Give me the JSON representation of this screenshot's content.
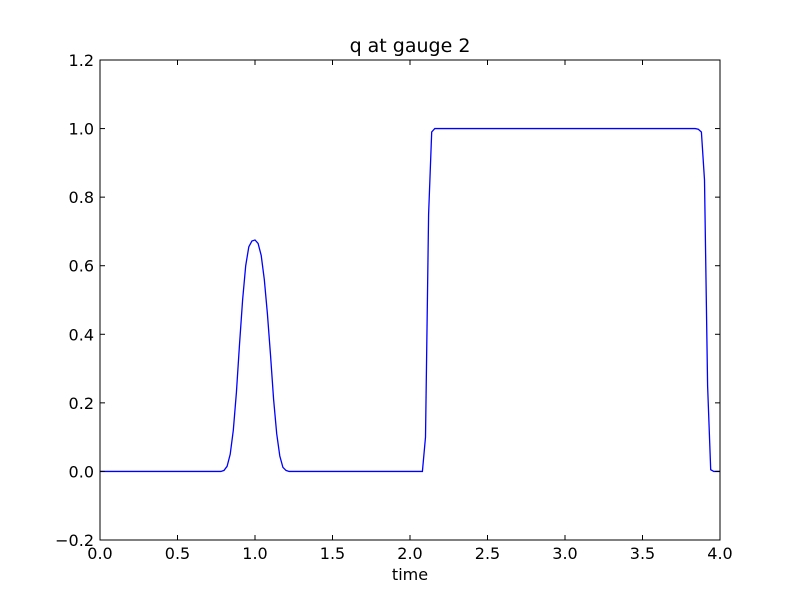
{
  "chart_data": {
    "type": "line",
    "title": "q at gauge 2",
    "xlabel": "time",
    "ylabel": "",
    "xlim": [
      0.0,
      4.0
    ],
    "ylim": [
      -0.2,
      1.2
    ],
    "xticks": [
      "0.0",
      "0.5",
      "1.0",
      "1.5",
      "2.0",
      "2.5",
      "3.0",
      "3.5",
      "4.0"
    ],
    "yticks": [
      "−0.2",
      "0.0",
      "0.2",
      "0.4",
      "0.6",
      "0.8",
      "1.0",
      "1.2"
    ],
    "grid": false,
    "legend": "none",
    "line_color": "#0000ff",
    "series": [
      {
        "x": [
          0.0,
          0.78,
          0.8,
          0.82,
          0.84,
          0.86,
          0.88,
          0.9,
          0.92,
          0.94,
          0.96,
          0.98,
          1.0,
          1.02,
          1.04,
          1.06,
          1.08,
          1.1,
          1.12,
          1.14,
          1.16,
          1.18,
          1.2,
          1.22,
          1.24,
          1.3,
          2.05,
          2.08,
          2.1,
          2.12,
          2.14,
          2.16,
          2.2,
          3.8,
          3.84,
          3.86,
          3.88,
          3.9,
          3.92,
          3.94,
          3.96,
          4.0
        ],
        "y": [
          0.0,
          0.0,
          0.003,
          0.015,
          0.05,
          0.12,
          0.23,
          0.37,
          0.5,
          0.6,
          0.655,
          0.672,
          0.675,
          0.665,
          0.63,
          0.56,
          0.46,
          0.34,
          0.21,
          0.11,
          0.045,
          0.012,
          0.003,
          0.0,
          0.0,
          0.0,
          0.0,
          0.0,
          0.1,
          0.75,
          0.99,
          1.0,
          1.0,
          1.0,
          1.0,
          0.998,
          0.99,
          0.85,
          0.25,
          0.005,
          0.0,
          0.0
        ]
      }
    ]
  }
}
